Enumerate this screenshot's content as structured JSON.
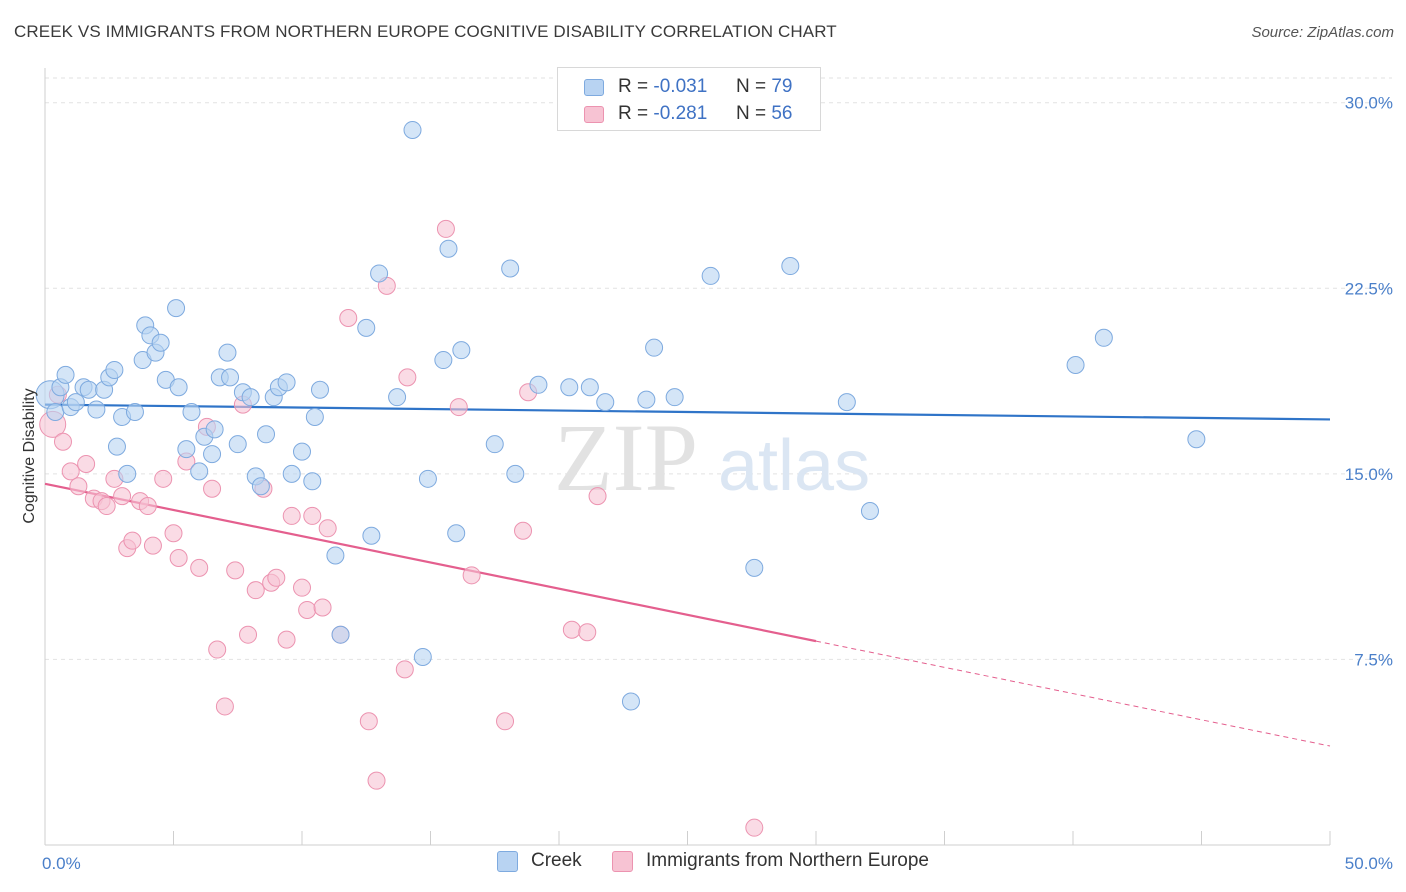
{
  "header": {
    "title": "CREEK VS IMMIGRANTS FROM NORTHERN EUROPE COGNITIVE DISABILITY CORRELATION CHART",
    "source": "Source: ZipAtlas.com"
  },
  "legend": {
    "rows": [
      {
        "r_label": "R =",
        "r_value": "-0.031",
        "n_label": "N =",
        "n_value": "79"
      },
      {
        "r_label": "R =",
        "r_value": "-0.281",
        "n_label": "N =",
        "n_value": "56"
      }
    ]
  },
  "bottom_legend": {
    "items": [
      {
        "label": "Creek"
      },
      {
        "label": "Immigrants from Northern Europe"
      }
    ]
  },
  "watermark": {
    "zip": "ZIP",
    "atlas": "atlas"
  },
  "colors": {
    "blue_fill": "#b8d3f2",
    "blue_stroke": "#7eaadf",
    "blue_line": "#2f74c8",
    "pink_fill": "#f7c3d3",
    "pink_stroke": "#ec93b0",
    "pink_line": "#e45f8e",
    "axis_text": "#4a7fc9",
    "grid": "#e2e2e2"
  },
  "chart_data": {
    "type": "scatter",
    "title": "CREEK VS IMMIGRANTS FROM NORTHERN EUROPE COGNITIVE DISABILITY CORRELATION CHART",
    "xlabel": "",
    "ylabel": "Cognitive Disability",
    "xlim": [
      0,
      50
    ],
    "ylim": [
      0,
      31
    ],
    "x_tick_labels": [
      "0.0%",
      "50.0%"
    ],
    "y_ticks": [
      7.5,
      15.0,
      22.5,
      30.0
    ],
    "y_tick_labels": [
      "7.5%",
      "15.0%",
      "22.5%",
      "30.0%"
    ],
    "grid": true,
    "legend_position": "top-center",
    "series": [
      {
        "name": "Creek",
        "r": -0.031,
        "n": 79,
        "trend": {
          "x0": 0,
          "y0": 17.8,
          "x1": 50,
          "y1": 17.2,
          "dashed_from": null
        },
        "points": [
          [
            0.2,
            18.2
          ],
          [
            0.4,
            17.5
          ],
          [
            0.6,
            18.5
          ],
          [
            0.8,
            19.0
          ],
          [
            1.0,
            17.7
          ],
          [
            1.2,
            17.9
          ],
          [
            1.5,
            18.5
          ],
          [
            1.7,
            18.4
          ],
          [
            2.0,
            17.6
          ],
          [
            2.3,
            18.4
          ],
          [
            2.5,
            18.9
          ],
          [
            2.7,
            19.2
          ],
          [
            2.8,
            16.1
          ],
          [
            3.0,
            17.3
          ],
          [
            3.2,
            15.0
          ],
          [
            3.5,
            17.5
          ],
          [
            3.8,
            19.6
          ],
          [
            3.9,
            21.0
          ],
          [
            4.1,
            20.6
          ],
          [
            4.3,
            19.9
          ],
          [
            4.5,
            20.3
          ],
          [
            4.7,
            18.8
          ],
          [
            5.2,
            18.5
          ],
          [
            5.1,
            21.7
          ],
          [
            5.5,
            16.0
          ],
          [
            5.7,
            17.5
          ],
          [
            6.0,
            15.1
          ],
          [
            6.2,
            16.5
          ],
          [
            6.5,
            15.8
          ],
          [
            6.6,
            16.8
          ],
          [
            6.8,
            18.9
          ],
          [
            7.1,
            19.9
          ],
          [
            7.2,
            18.9
          ],
          [
            7.5,
            16.2
          ],
          [
            7.7,
            18.3
          ],
          [
            8.0,
            18.1
          ],
          [
            8.2,
            14.9
          ],
          [
            8.4,
            14.5
          ],
          [
            8.6,
            16.6
          ],
          [
            8.9,
            18.1
          ],
          [
            9.1,
            18.5
          ],
          [
            9.4,
            18.7
          ],
          [
            9.6,
            15.0
          ],
          [
            10.0,
            15.9
          ],
          [
            10.4,
            14.7
          ],
          [
            10.5,
            17.3
          ],
          [
            10.7,
            18.4
          ],
          [
            11.3,
            11.7
          ],
          [
            11.5,
            8.5
          ],
          [
            12.5,
            20.9
          ],
          [
            12.7,
            12.5
          ],
          [
            13.0,
            23.1
          ],
          [
            13.7,
            18.1
          ],
          [
            14.3,
            28.9
          ],
          [
            14.7,
            7.6
          ],
          [
            14.9,
            14.8
          ],
          [
            15.5,
            19.6
          ],
          [
            15.7,
            24.1
          ],
          [
            16.0,
            12.6
          ],
          [
            16.2,
            20.0
          ],
          [
            17.5,
            16.2
          ],
          [
            18.1,
            23.3
          ],
          [
            18.3,
            15.0
          ],
          [
            19.2,
            18.6
          ],
          [
            20.4,
            18.5
          ],
          [
            21.2,
            18.5
          ],
          [
            21.8,
            17.9
          ],
          [
            22.8,
            5.8
          ],
          [
            23.4,
            18.0
          ],
          [
            23.7,
            20.1
          ],
          [
            24.5,
            18.1
          ],
          [
            25.9,
            23.0
          ],
          [
            27.6,
            11.2
          ],
          [
            29.0,
            23.4
          ],
          [
            31.2,
            17.9
          ],
          [
            32.1,
            13.5
          ],
          [
            40.1,
            19.4
          ],
          [
            41.2,
            20.5
          ],
          [
            44.8,
            16.4
          ]
        ]
      },
      {
        "name": "Immigrants from Northern Europe",
        "r": -0.281,
        "n": 56,
        "trend": {
          "x0": 0,
          "y0": 14.6,
          "x1": 50,
          "y1": 4.0,
          "dashed_from": 30.0
        },
        "points": [
          [
            0.3,
            17.0
          ],
          [
            0.7,
            16.3
          ],
          [
            1.0,
            15.1
          ],
          [
            1.3,
            14.5
          ],
          [
            1.6,
            15.4
          ],
          [
            1.9,
            14.0
          ],
          [
            2.2,
            13.9
          ],
          [
            2.4,
            13.7
          ],
          [
            2.7,
            14.8
          ],
          [
            3.0,
            14.1
          ],
          [
            3.2,
            12.0
          ],
          [
            3.4,
            12.3
          ],
          [
            3.7,
            13.9
          ],
          [
            4.0,
            13.7
          ],
          [
            4.2,
            12.1
          ],
          [
            4.6,
            14.8
          ],
          [
            5.0,
            12.6
          ],
          [
            5.2,
            11.6
          ],
          [
            5.5,
            15.5
          ],
          [
            6.0,
            11.2
          ],
          [
            6.3,
            16.9
          ],
          [
            6.5,
            14.4
          ],
          [
            6.7,
            7.9
          ],
          [
            7.0,
            5.6
          ],
          [
            7.4,
            11.1
          ],
          [
            7.7,
            17.8
          ],
          [
            7.9,
            8.5
          ],
          [
            8.2,
            10.3
          ],
          [
            8.5,
            14.4
          ],
          [
            8.8,
            10.6
          ],
          [
            9.0,
            10.8
          ],
          [
            9.4,
            8.3
          ],
          [
            9.6,
            13.3
          ],
          [
            10.0,
            10.4
          ],
          [
            10.2,
            9.5
          ],
          [
            10.4,
            13.3
          ],
          [
            10.8,
            9.6
          ],
          [
            11.0,
            12.8
          ],
          [
            11.5,
            8.5
          ],
          [
            11.8,
            21.3
          ],
          [
            12.6,
            5.0
          ],
          [
            12.9,
            2.6
          ],
          [
            13.3,
            22.6
          ],
          [
            14.0,
            7.1
          ],
          [
            14.1,
            18.9
          ],
          [
            15.6,
            24.9
          ],
          [
            16.1,
            17.7
          ],
          [
            16.6,
            10.9
          ],
          [
            17.9,
            5.0
          ],
          [
            18.6,
            12.7
          ],
          [
            18.8,
            18.3
          ],
          [
            20.5,
            8.7
          ],
          [
            21.5,
            14.1
          ],
          [
            21.1,
            8.6
          ],
          [
            27.6,
            0.7
          ],
          [
            0.5,
            18.2
          ]
        ]
      }
    ]
  }
}
